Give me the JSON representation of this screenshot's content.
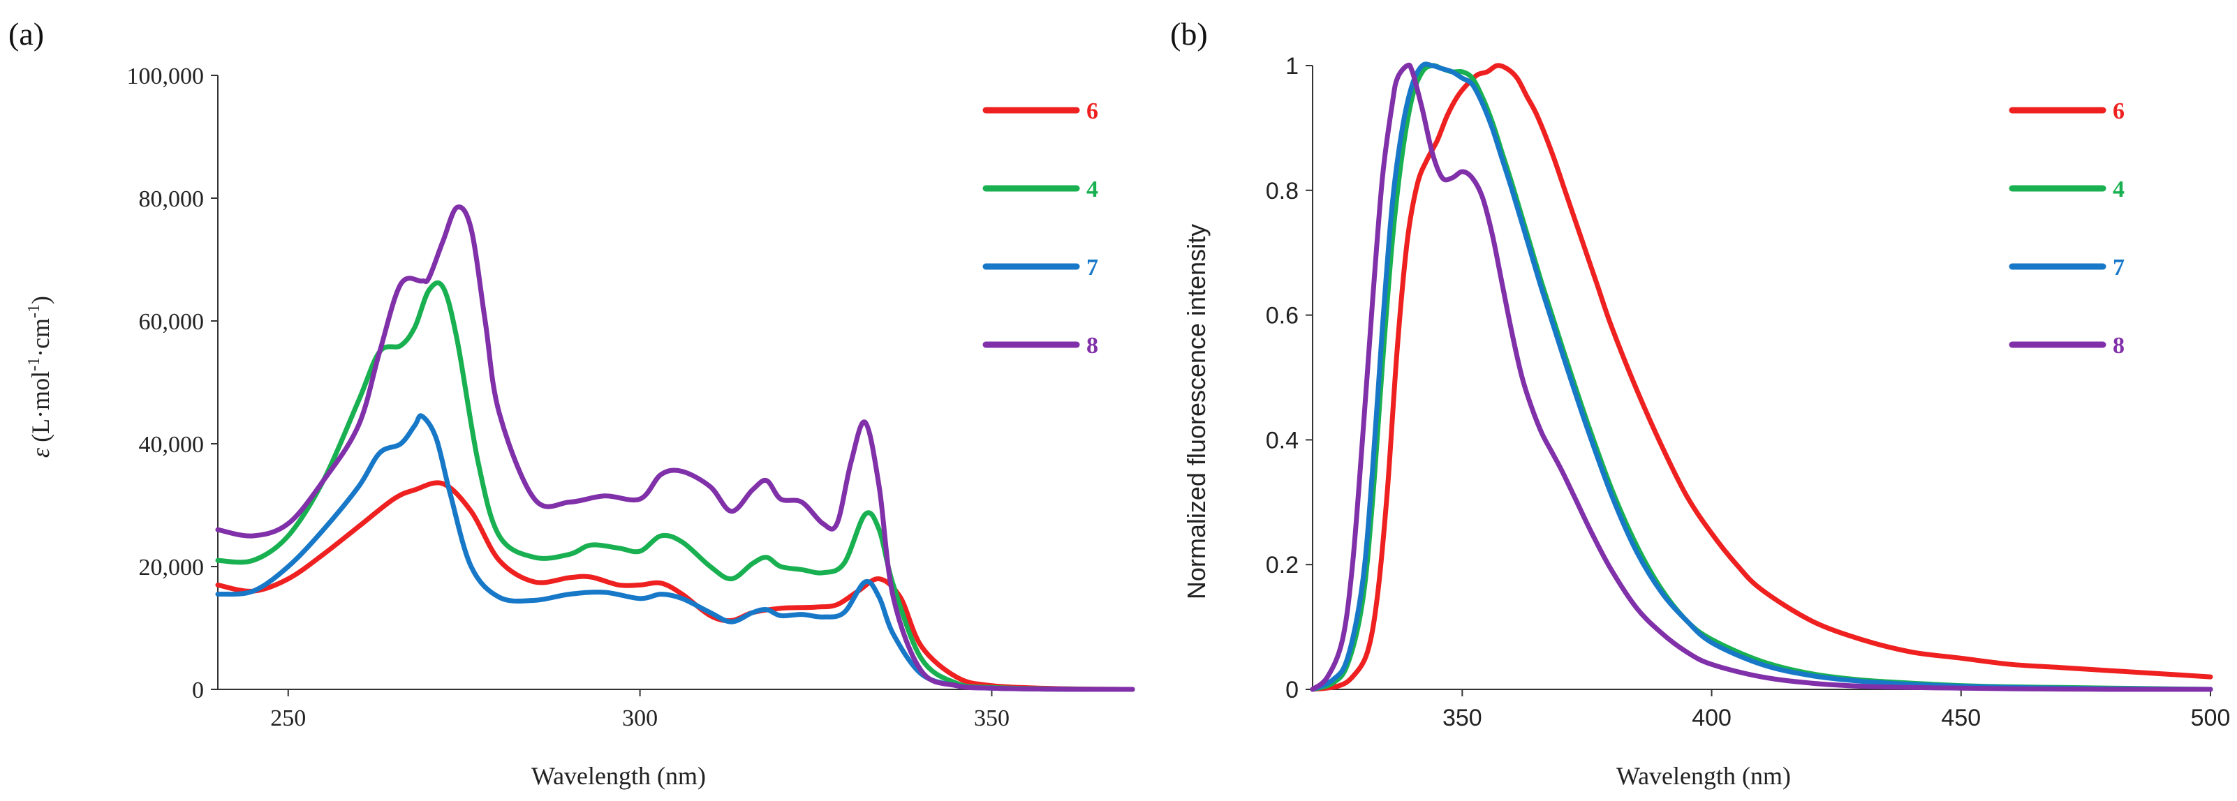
{
  "chart_data": [
    {
      "panel_label": "(a)",
      "type": "line",
      "title": "",
      "xlabel": "Wavelength (nm)",
      "ylabel": "ε (L·mol⁻¹·cm⁻¹)",
      "ylabel_parts": {
        "symbol": "ε",
        "unit": "(L·mol",
        "sup1": "-1",
        "mid": "·cm",
        "sup2": "-1",
        "end": ")"
      },
      "xlim": [
        240,
        370
      ],
      "ylim": [
        0,
        100000
      ],
      "xticks": [
        250,
        300,
        350
      ],
      "xtick_labels": [
        "250",
        "300",
        "350"
      ],
      "yticks": [
        0,
        20000,
        40000,
        60000,
        80000,
        100000
      ],
      "ytick_labels": [
        "0",
        "20,000",
        "40,000",
        "60,000",
        "80,000",
        "100,000"
      ],
      "grid": false,
      "legend_position": "top-right",
      "series": [
        {
          "name": "6",
          "color": "#ee2020",
          "x": [
            240,
            245,
            250,
            255,
            260,
            265,
            268,
            272,
            276,
            280,
            285,
            290,
            293,
            297,
            300,
            303,
            306,
            310,
            313,
            316,
            320,
            325,
            328,
            331,
            334,
            337,
            340,
            345,
            350,
            360,
            370
          ],
          "y": [
            17000,
            16000,
            18000,
            22000,
            26500,
            31000,
            32500,
            33500,
            29000,
            21000,
            17500,
            18200,
            18300,
            17000,
            17000,
            17300,
            15500,
            12000,
            11200,
            12500,
            13200,
            13400,
            13800,
            16000,
            18000,
            15000,
            7000,
            2000,
            600,
            100,
            0
          ]
        },
        {
          "name": "4",
          "color": "#18b050",
          "x": [
            240,
            245,
            250,
            255,
            260,
            263,
            266,
            268,
            270,
            272,
            274,
            277,
            280,
            285,
            290,
            293,
            297,
            300,
            303,
            306,
            310,
            313,
            316,
            318,
            320,
            323,
            326,
            329,
            332,
            334,
            336,
            340,
            345,
            350,
            360,
            370
          ],
          "y": [
            21000,
            21000,
            25000,
            34000,
            47000,
            55000,
            56000,
            59000,
            65000,
            65500,
            57000,
            37000,
            25000,
            21500,
            22000,
            23500,
            23000,
            22500,
            25000,
            24000,
            20000,
            18000,
            20500,
            21500,
            20000,
            19500,
            19000,
            20500,
            28500,
            26000,
            17000,
            5000,
            1000,
            300,
            50,
            0
          ]
        },
        {
          "name": "7",
          "color": "#1878c8",
          "x": [
            240,
            245,
            250,
            255,
            260,
            263,
            266,
            268,
            269,
            271,
            273,
            276,
            280,
            285,
            290,
            295,
            300,
            303,
            306,
            310,
            313,
            316,
            318,
            320,
            323,
            326,
            329,
            332,
            334,
            336,
            340,
            345,
            350,
            360,
            370
          ],
          "y": [
            15500,
            16000,
            20000,
            26000,
            33000,
            38500,
            40000,
            43000,
            44500,
            41000,
            32000,
            20000,
            15000,
            14500,
            15500,
            15800,
            14800,
            15500,
            14800,
            12500,
            11000,
            12500,
            13000,
            12000,
            12200,
            11800,
            12500,
            17500,
            15000,
            9000,
            2500,
            600,
            200,
            20,
            0
          ]
        },
        {
          "name": "8",
          "color": "#8030a8",
          "x": [
            240,
            245,
            250,
            255,
            260,
            263,
            266,
            269,
            270,
            272,
            274,
            276,
            278,
            280,
            285,
            290,
            295,
            300,
            303,
            306,
            310,
            313,
            316,
            318,
            320,
            323,
            326,
            328,
            330,
            332,
            334,
            336,
            340,
            345,
            350,
            360,
            370
          ],
          "y": [
            26000,
            25000,
            27000,
            34000,
            43000,
            55000,
            66000,
            66500,
            67000,
            73000,
            78500,
            75000,
            60000,
            45000,
            31000,
            30500,
            31500,
            31000,
            35000,
            35500,
            33000,
            29000,
            32500,
            34000,
            31000,
            30500,
            27000,
            27000,
            37000,
            43500,
            33000,
            15000,
            3000,
            600,
            200,
            20,
            0
          ]
        }
      ]
    },
    {
      "panel_label": "(b)",
      "type": "line",
      "title": "",
      "xlabel": "Wavelength (nm)",
      "ylabel": "Normalized fluorescence intensity",
      "xlim": [
        320,
        500
      ],
      "ylim": [
        0,
        1.0
      ],
      "xticks": [
        350,
        400,
        450,
        500
      ],
      "xtick_labels": [
        "350",
        "400",
        "450",
        "500"
      ],
      "yticks": [
        0,
        0.2,
        0.4,
        0.6,
        0.8,
        1.0
      ],
      "ytick_labels": [
        "0",
        "0.2",
        "0.4",
        "0.6",
        "0.8",
        "1"
      ],
      "grid": false,
      "legend_position": "top-right",
      "series": [
        {
          "name": "6",
          "color": "#ee2020",
          "x": [
            320,
            325,
            328,
            331,
            333,
            335,
            337,
            339,
            341,
            343,
            345,
            347,
            349,
            351,
            353,
            355,
            357,
            359,
            361,
            363,
            365,
            368,
            371,
            374,
            377,
            380,
            385,
            390,
            395,
            400,
            405,
            410,
            420,
            430,
            440,
            450,
            460,
            470,
            480,
            490,
            500
          ],
          "y": [
            0,
            0.005,
            0.02,
            0.06,
            0.15,
            0.32,
            0.55,
            0.72,
            0.81,
            0.85,
            0.88,
            0.92,
            0.95,
            0.97,
            0.985,
            0.99,
            1.0,
            0.995,
            0.98,
            0.95,
            0.92,
            0.86,
            0.79,
            0.72,
            0.65,
            0.58,
            0.48,
            0.39,
            0.31,
            0.25,
            0.2,
            0.16,
            0.11,
            0.08,
            0.06,
            0.05,
            0.04,
            0.035,
            0.03,
            0.025,
            0.02
          ]
        },
        {
          "name": "4",
          "color": "#18b050",
          "x": [
            320,
            324,
            327,
            330,
            332,
            334,
            336,
            338,
            340,
            342,
            344,
            346,
            348,
            350,
            352,
            354,
            356,
            358,
            360,
            363,
            366,
            370,
            375,
            380,
            385,
            390,
            395,
            400,
            410,
            420,
            430,
            440,
            450,
            460,
            470,
            480,
            490,
            500
          ],
          "y": [
            0,
            0.01,
            0.04,
            0.14,
            0.3,
            0.52,
            0.72,
            0.86,
            0.95,
            0.99,
            1.0,
            0.995,
            0.99,
            0.99,
            0.98,
            0.95,
            0.91,
            0.86,
            0.81,
            0.73,
            0.65,
            0.55,
            0.43,
            0.32,
            0.23,
            0.16,
            0.11,
            0.08,
            0.045,
            0.025,
            0.015,
            0.01,
            0.006,
            0.004,
            0.003,
            0.002,
            0.001,
            0
          ]
        },
        {
          "name": "7",
          "color": "#1878c8",
          "x": [
            320,
            324,
            327,
            330,
            332,
            334,
            336,
            338,
            340,
            342,
            344,
            346,
            348,
            350,
            352,
            354,
            356,
            358,
            360,
            363,
            366,
            370,
            375,
            380,
            385,
            390,
            395,
            400,
            410,
            420,
            430,
            440,
            450,
            460,
            470,
            480,
            490,
            500
          ],
          "y": [
            0,
            0.015,
            0.05,
            0.17,
            0.35,
            0.58,
            0.78,
            0.9,
            0.97,
            1.0,
            1.0,
            0.995,
            0.99,
            0.98,
            0.97,
            0.94,
            0.9,
            0.85,
            0.8,
            0.72,
            0.64,
            0.54,
            0.42,
            0.31,
            0.22,
            0.155,
            0.11,
            0.075,
            0.04,
            0.022,
            0.013,
            0.008,
            0.005,
            0.003,
            0.002,
            0.001,
            0.0005,
            0
          ]
        },
        {
          "name": "8",
          "color": "#8030a8",
          "x": [
            320,
            323,
            326,
            328,
            330,
            332,
            334,
            336,
            337,
            339,
            340,
            342,
            344,
            346,
            348,
            350,
            352,
            354,
            356,
            358,
            360,
            362,
            364,
            366,
            368,
            370,
            373,
            376,
            380,
            385,
            390,
            395,
            400,
            410,
            420,
            430,
            440,
            450,
            460,
            470,
            480,
            490,
            500
          ],
          "y": [
            0,
            0.02,
            0.08,
            0.2,
            0.4,
            0.62,
            0.82,
            0.94,
            0.98,
            1.0,
            0.99,
            0.93,
            0.86,
            0.82,
            0.82,
            0.83,
            0.82,
            0.79,
            0.73,
            0.65,
            0.57,
            0.5,
            0.45,
            0.41,
            0.38,
            0.35,
            0.3,
            0.25,
            0.19,
            0.13,
            0.09,
            0.06,
            0.04,
            0.02,
            0.01,
            0.005,
            0.003,
            0.002,
            0.001,
            0.0005,
            0,
            0,
            0
          ]
        }
      ]
    }
  ]
}
